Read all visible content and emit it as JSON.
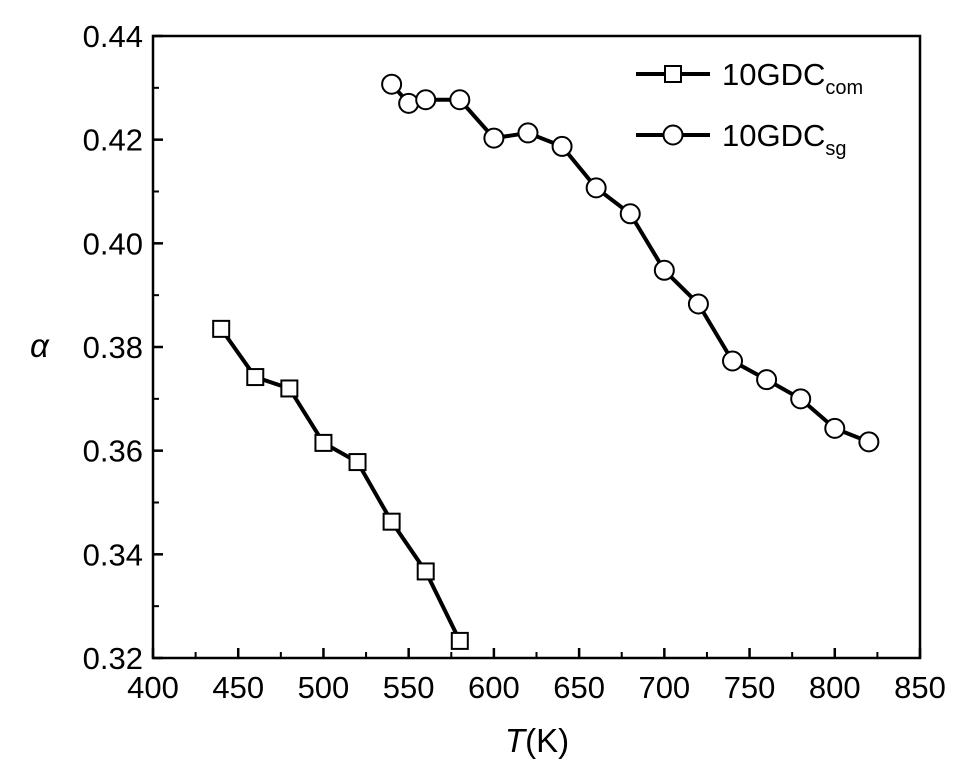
{
  "chart_data": {
    "type": "line",
    "title": "",
    "xlabel": "T",
    "xlabel_unit": "(K)",
    "ylabel": "α",
    "xlim": [
      400,
      850
    ],
    "ylim": [
      0.32,
      0.44
    ],
    "xticks": [
      "400",
      "450",
      "500",
      "550",
      "600",
      "650",
      "700",
      "750",
      "800",
      "850"
    ],
    "yticks": [
      "0.32",
      "0.34",
      "0.36",
      "0.38",
      "0.40",
      "0.42",
      "0.44"
    ],
    "grid": false,
    "legend_position": "top-right",
    "series": [
      {
        "name": "10GDC",
        "name_sub": "com",
        "marker": "square",
        "x": [
          440,
          460,
          480,
          500,
          520,
          540,
          560,
          580
        ],
        "y": [
          0.3835,
          0.3742,
          0.372,
          0.3615,
          0.3578,
          0.3463,
          0.3367,
          0.3233
        ]
      },
      {
        "name": "10GDC",
        "name_sub": "sg",
        "marker": "circle",
        "x": [
          540,
          550,
          560,
          580,
          600,
          620,
          640,
          660,
          680,
          700,
          720,
          740,
          760,
          780,
          800,
          820
        ],
        "y": [
          0.4307,
          0.427,
          0.4277,
          0.4277,
          0.4203,
          0.4213,
          0.4187,
          0.4107,
          0.4057,
          0.3948,
          0.3883,
          0.3773,
          0.3737,
          0.37,
          0.3643,
          0.3617
        ]
      }
    ]
  }
}
